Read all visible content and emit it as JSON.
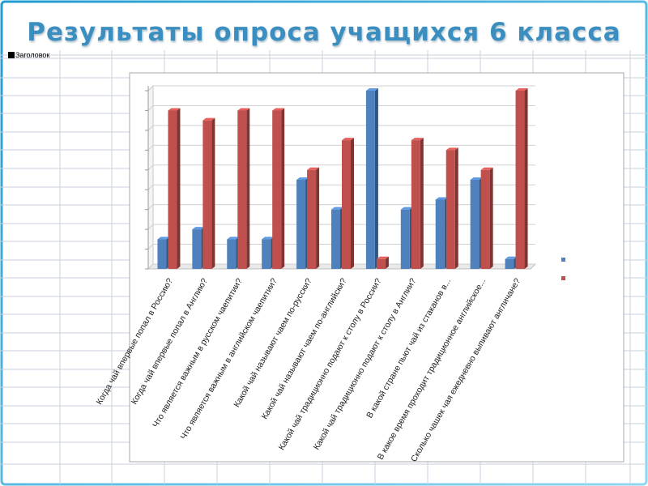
{
  "slide": {
    "title": "Результаты опроса учащихся 6 класса",
    "corner_label": "Заголовок"
  },
  "colors": {
    "frame_gradient_top": "#1f9bd0",
    "frame_gradient_bottom": "#8fd6f0",
    "title": "#3b8fc0",
    "grid_lines": "#c9d2dc",
    "series_blue": "#4f81bd",
    "series_red": "#c0504d"
  },
  "chart_data": {
    "type": "bar",
    "title": "",
    "xlabel": "",
    "ylabel": "",
    "ylim": [
      0,
      9
    ],
    "gridlines": true,
    "legend": "right",
    "categories": [
      "Когда чай впервые попал в Россию?",
      "Когда чай впервые попал в Англию?",
      "Что является важным в русском чаепитии?",
      "Что является важным в английском чаепитии?",
      "Какой чай называют чаем по-русски?",
      "Какой чай называют чаем по-английски?",
      "Какой чай традиционно подают к столу в России?",
      "Какой чай традиционно подают к столу в Англии?",
      "В какой стране пьют чай из стаканов в...",
      "В какое время проходит традиционное английское...",
      "Сколько чашек чая ежедневно выпивают англичане?"
    ],
    "series": [
      {
        "values": [
          1.5,
          2,
          1.5,
          1.5,
          4.5,
          3,
          9,
          3,
          3.5,
          4.5,
          0.5
        ],
        "color": "#4f81bd"
      },
      {
        "values": [
          8,
          7.5,
          8,
          8,
          5,
          6.5,
          0.5,
          6.5,
          6,
          5,
          9
        ],
        "color": "#c0504d"
      }
    ]
  }
}
